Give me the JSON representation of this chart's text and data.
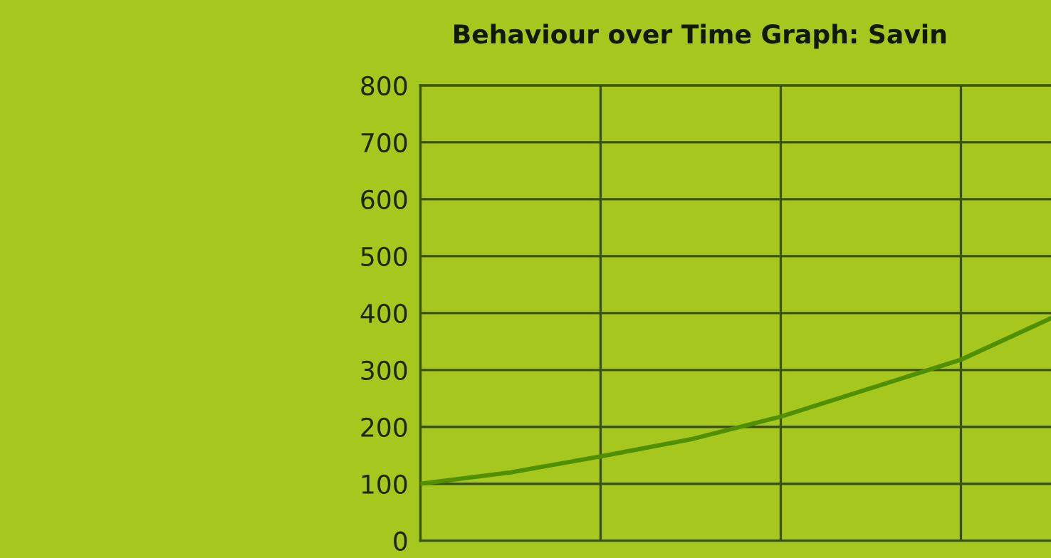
{
  "chart_data": {
    "type": "line",
    "title": "Behaviour over Time Graph: Savin",
    "categories": [
      null,
      null,
      null,
      null,
      null,
      null,
      null,
      null
    ],
    "series": [
      {
        "color": "#4f8f00",
        "values": [
          100,
          120,
          148,
          178,
          218,
          268,
          318,
          391
        ]
      }
    ],
    "ylim": [
      0,
      800
    ],
    "yticks": [
      0,
      100,
      200,
      300,
      400,
      500,
      600,
      700,
      800
    ],
    "grid": true,
    "marker": "none",
    "line_style": "solid",
    "legend": false
  }
}
